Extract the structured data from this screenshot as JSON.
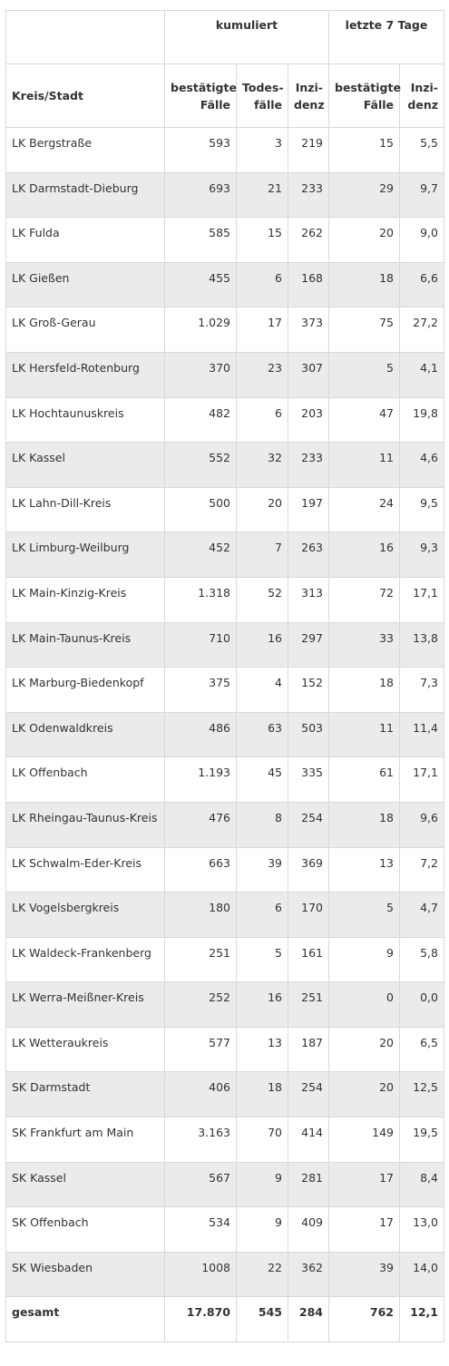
{
  "headers": {
    "group_cumulative": "kumuliert",
    "group_last7": "letzte 7 Tage",
    "kreis": "Kreis/Stadt",
    "cum_cases_1": "bestätigte",
    "cum_cases_2": "Fälle",
    "cum_deaths_1": "Todes-",
    "cum_deaths_2": "fälle",
    "cum_incidence_1": "Inzi-",
    "cum_incidence_2": "denz",
    "last7_cases_1": "bestätigte",
    "last7_cases_2": "Fälle",
    "last7_incidence_1": "Inzi-",
    "last7_incidence_2": "denz"
  },
  "rows": [
    {
      "name": "LK Bergstraße",
      "cases": "593",
      "deaths": "3",
      "incidence": "219",
      "cases7": "15",
      "incidence7": "5,5"
    },
    {
      "name": "LK Darmstadt-Dieburg",
      "cases": "693",
      "deaths": "21",
      "incidence": "233",
      "cases7": "29",
      "incidence7": "9,7"
    },
    {
      "name": "LK Fulda",
      "cases": "585",
      "deaths": "15",
      "incidence": "262",
      "cases7": "20",
      "incidence7": "9,0"
    },
    {
      "name": "LK Gießen",
      "cases": "455",
      "deaths": "6",
      "incidence": "168",
      "cases7": "18",
      "incidence7": "6,6"
    },
    {
      "name": "LK Groß-Gerau",
      "cases": "1.029",
      "deaths": "17",
      "incidence": "373",
      "cases7": "75",
      "incidence7": "27,2"
    },
    {
      "name": "LK Hersfeld-Rotenburg",
      "cases": "370",
      "deaths": "23",
      "incidence": "307",
      "cases7": "5",
      "incidence7": "4,1"
    },
    {
      "name": "LK Hochtaunuskreis",
      "cases": "482",
      "deaths": "6",
      "incidence": "203",
      "cases7": "47",
      "incidence7": "19,8"
    },
    {
      "name": "LK Kassel",
      "cases": "552",
      "deaths": "32",
      "incidence": "233",
      "cases7": "11",
      "incidence7": "4,6"
    },
    {
      "name": "LK Lahn-Dill-Kreis",
      "cases": "500",
      "deaths": "20",
      "incidence": "197",
      "cases7": "24",
      "incidence7": "9,5"
    },
    {
      "name": "LK Limburg-Weilburg",
      "cases": "452",
      "deaths": "7",
      "incidence": "263",
      "cases7": "16",
      "incidence7": "9,3"
    },
    {
      "name": "LK Main-Kinzig-Kreis",
      "cases": "1.318",
      "deaths": "52",
      "incidence": "313",
      "cases7": "72",
      "incidence7": "17,1"
    },
    {
      "name": "LK Main-Taunus-Kreis",
      "cases": "710",
      "deaths": "16",
      "incidence": "297",
      "cases7": "33",
      "incidence7": "13,8"
    },
    {
      "name": "LK Marburg-Biedenkopf",
      "cases": "375",
      "deaths": "4",
      "incidence": "152",
      "cases7": "18",
      "incidence7": "7,3"
    },
    {
      "name": "LK Odenwaldkreis",
      "cases": "486",
      "deaths": "63",
      "incidence": "503",
      "cases7": "11",
      "incidence7": "11,4"
    },
    {
      "name": "LK Offenbach",
      "cases": "1.193",
      "deaths": "45",
      "incidence": "335",
      "cases7": "61",
      "incidence7": "17,1"
    },
    {
      "name": "LK Rheingau-Taunus-Kreis",
      "cases": "476",
      "deaths": "8",
      "incidence": "254",
      "cases7": "18",
      "incidence7": "9,6"
    },
    {
      "name": "LK Schwalm-Eder-Kreis",
      "cases": "663",
      "deaths": "39",
      "incidence": "369",
      "cases7": "13",
      "incidence7": "7,2"
    },
    {
      "name": "LK Vogelsbergkreis",
      "cases": "180",
      "deaths": "6",
      "incidence": "170",
      "cases7": "5",
      "incidence7": "4,7"
    },
    {
      "name": "LK Waldeck-Frankenberg",
      "cases": "251",
      "deaths": "5",
      "incidence": "161",
      "cases7": "9",
      "incidence7": "5,8"
    },
    {
      "name": "LK Werra-Meißner-Kreis",
      "cases": "252",
      "deaths": "16",
      "incidence": "251",
      "cases7": "0",
      "incidence7": "0,0"
    },
    {
      "name": "LK Wetteraukreis",
      "cases": "577",
      "deaths": "13",
      "incidence": "187",
      "cases7": "20",
      "incidence7": "6,5"
    },
    {
      "name": "SK Darmstadt",
      "cases": "406",
      "deaths": "18",
      "incidence": "254",
      "cases7": "20",
      "incidence7": "12,5"
    },
    {
      "name": "SK Frankfurt am Main",
      "cases": "3.163",
      "deaths": "70",
      "incidence": "414",
      "cases7": "149",
      "incidence7": "19,5"
    },
    {
      "name": "SK Kassel",
      "cases": "567",
      "deaths": "9",
      "incidence": "281",
      "cases7": "17",
      "incidence7": "8,4"
    },
    {
      "name": "SK Offenbach",
      "cases": "534",
      "deaths": "9",
      "incidence": "409",
      "cases7": "17",
      "incidence7": "13,0"
    },
    {
      "name": "SK Wiesbaden",
      "cases": "1008",
      "deaths": "22",
      "incidence": "362",
      "cases7": "39",
      "incidence7": "14,0"
    }
  ],
  "total": {
    "name": "gesamt",
    "cases": "17.870",
    "deaths": "545",
    "incidence": "284",
    "cases7": "762",
    "incidence7": "12,1"
  },
  "colors": {
    "stripe": "#ebebeb",
    "border": "#d9d9d9",
    "text": "#333333"
  }
}
